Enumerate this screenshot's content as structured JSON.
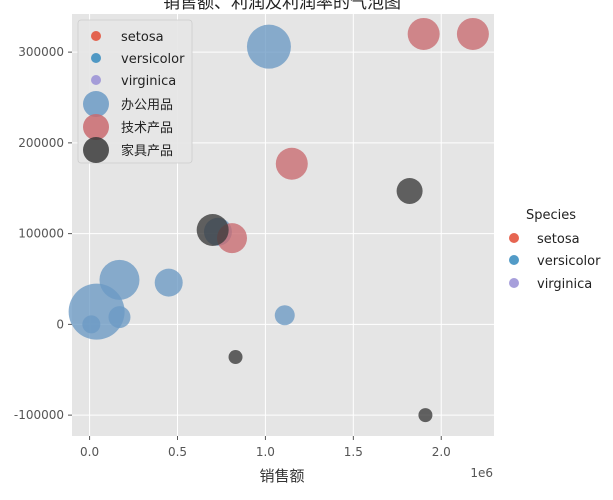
{
  "chart_data": {
    "type": "scatter",
    "title": "销售额、利润及利润率的气泡图",
    "xlabel": "销售额",
    "ylabel": "",
    "x_offset_text": "1e6",
    "xlim": [
      -0.1,
      2.3
    ],
    "ylim": [
      -123000,
      342000
    ],
    "x_ticks": [
      0.0,
      0.5,
      1.0,
      1.5,
      2.0
    ],
    "x_tick_labels": [
      "0.0",
      "0.5",
      "1.0",
      "1.5",
      "2.0"
    ],
    "y_ticks": [
      -100000,
      0,
      100000,
      200000,
      300000
    ],
    "y_tick_labels": [
      "-100000",
      "0",
      "100000",
      "200000",
      "300000"
    ],
    "grid": true,
    "background": "#e5e5e5",
    "inner_legend": {
      "placement": "top-left",
      "entries": [
        {
          "label": "setosa",
          "color": "#e24a33",
          "kind": "small"
        },
        {
          "label": "versicolor",
          "color": "#348abd",
          "kind": "small"
        },
        {
          "label": "virginica",
          "color": "#988ed5",
          "kind": "small"
        },
        {
          "label": "办公用品",
          "color": "#6b9ac4",
          "kind": "large"
        },
        {
          "label": "技术产品",
          "color": "#c96a6f",
          "kind": "large"
        },
        {
          "label": "家具产品",
          "color": "#3a3a3a",
          "kind": "large"
        }
      ]
    },
    "outer_legend": {
      "placement": "right",
      "title": "Species",
      "entries": [
        {
          "label": "setosa",
          "color": "#e24a33"
        },
        {
          "label": "versicolor",
          "color": "#348abd"
        },
        {
          "label": "virginica",
          "color": "#988ed5"
        }
      ]
    },
    "series": [
      {
        "name": "办公用品",
        "color": "#6b9ac4",
        "points": [
          {
            "x": 1.02,
            "y": 306000,
            "size": 22
          },
          {
            "x": 0.17,
            "y": 49000,
            "size": 20
          },
          {
            "x": 0.04,
            "y": 14000,
            "size": 28
          },
          {
            "x": 0.45,
            "y": 46000,
            "size": 14
          },
          {
            "x": 0.73,
            "y": 102000,
            "size": 14
          },
          {
            "x": 0.17,
            "y": 8000,
            "size": 11
          },
          {
            "x": 1.11,
            "y": 10000,
            "size": 10
          },
          {
            "x": 0.01,
            "y": 0,
            "size": 9
          }
        ]
      },
      {
        "name": "技术产品",
        "color": "#c96a6f",
        "points": [
          {
            "x": 1.9,
            "y": 320000,
            "size": 16
          },
          {
            "x": 2.18,
            "y": 320000,
            "size": 16
          },
          {
            "x": 1.15,
            "y": 177000,
            "size": 16
          },
          {
            "x": 0.81,
            "y": 95000,
            "size": 15
          }
        ]
      },
      {
        "name": "家具产品",
        "color": "#3a3a3a",
        "points": [
          {
            "x": 1.82,
            "y": 147000,
            "size": 13
          },
          {
            "x": 0.7,
            "y": 104000,
            "size": 16
          },
          {
            "x": 0.83,
            "y": -36000,
            "size": 7
          },
          {
            "x": 1.91,
            "y": -100000,
            "size": 7
          }
        ]
      }
    ]
  }
}
